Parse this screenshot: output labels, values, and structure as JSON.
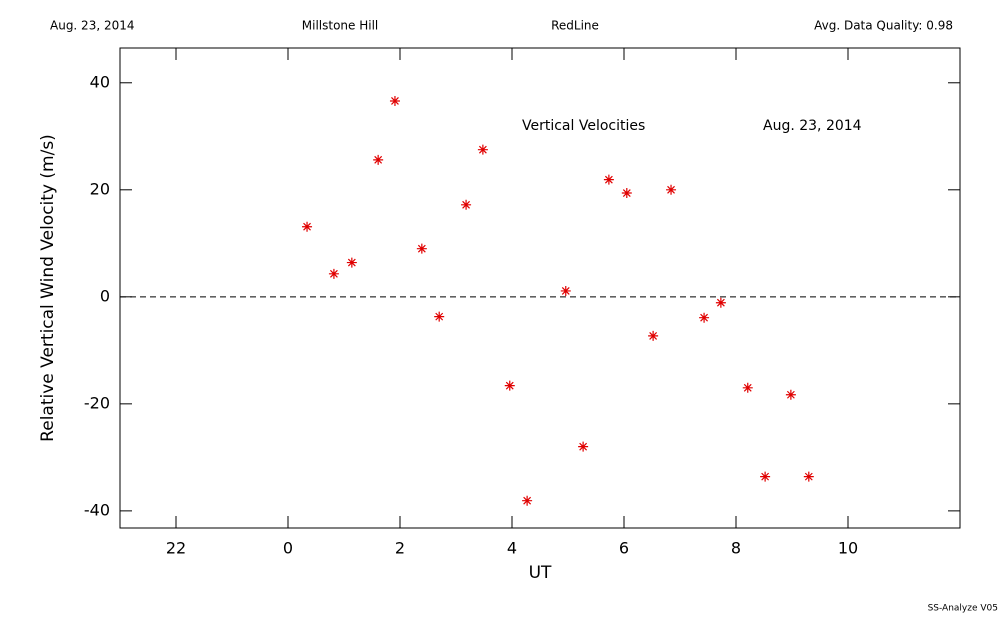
{
  "header": {
    "date": "Aug. 23, 2014",
    "site": "Millstone Hill",
    "filter": "RedLine",
    "quality": "Avg. Data Quality: 0.98"
  },
  "footer": "SS-Analyze V05",
  "chart_data": {
    "type": "scatter",
    "xlabel": "UT",
    "ylabel": "Relative Vertical Wind Velocity (m/s)",
    "annotations": [
      "Vertical Velocities",
      "Aug. 23, 2014"
    ],
    "x": [
      0.34,
      0.82,
      1.14,
      1.61,
      1.91,
      2.39,
      2.7,
      3.18,
      3.48,
      3.96,
      4.27,
      4.96,
      5.27,
      5.73,
      6.05,
      6.52,
      6.84,
      7.43,
      7.73,
      8.21,
      8.52,
      8.98,
      9.3
    ],
    "values": [
      13.1,
      4.3,
      6.4,
      25.6,
      36.6,
      9.0,
      -3.7,
      17.2,
      27.5,
      -16.6,
      -38.1,
      1.1,
      -28.0,
      21.9,
      19.4,
      -7.3,
      20.0,
      -3.9,
      -1.1,
      -17.0,
      -33.6,
      -18.3,
      -33.6
    ],
    "color": "#e00000",
    "xlim": [
      -3,
      12
    ],
    "xticks": [
      {
        "value": -2,
        "label": "22"
      },
      0,
      2,
      4,
      6,
      8,
      10
    ],
    "ylim": [
      -43.2,
      46.5
    ],
    "yticks": [
      -40,
      -20,
      0,
      20,
      40
    ],
    "hline": 0
  }
}
